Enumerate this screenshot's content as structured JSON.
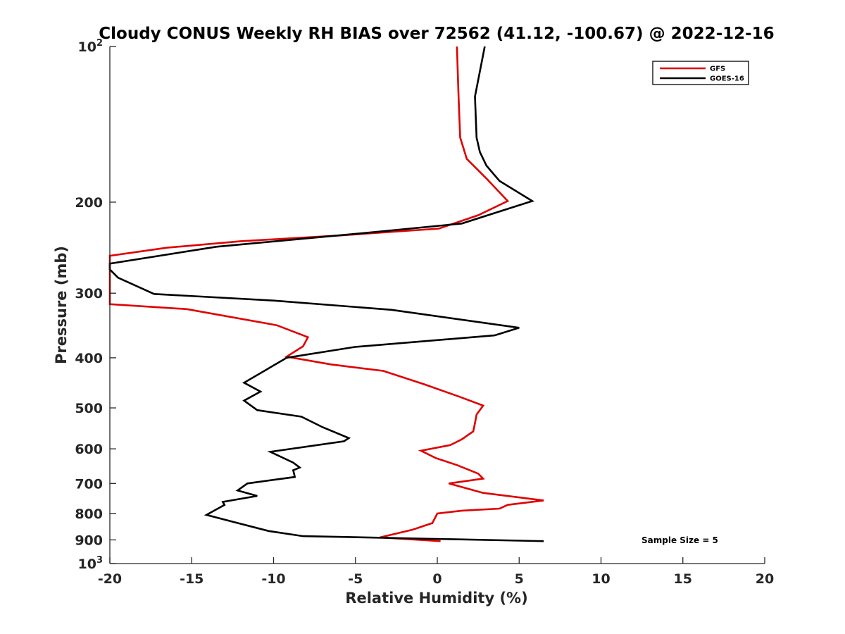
{
  "chart_data": {
    "type": "line",
    "title": "Cloudy CONUS Weekly RH BIAS over 72562 (41.12, -100.67) @ 2022-12-16",
    "xlabel": "Relative Humidity (%)",
    "ylabel": "Pressure (mb)",
    "xlim": [
      -20,
      20
    ],
    "ylim": [
      100,
      1000
    ],
    "yscale": "log",
    "y_reversed": true,
    "x_ticks": [
      -20,
      -15,
      -10,
      -5,
      0,
      5,
      10,
      15,
      20
    ],
    "x_tick_labels": [
      "-20",
      "-15",
      "-10",
      "-5",
      "0",
      "5",
      "10",
      "15",
      "20"
    ],
    "y_ticks": [
      {
        "value": 100,
        "base": "10",
        "exp": "2"
      },
      {
        "value": 200,
        "label": "200"
      },
      {
        "value": 300,
        "label": "300"
      },
      {
        "value": 400,
        "label": "400"
      },
      {
        "value": 500,
        "label": "500"
      },
      {
        "value": 600,
        "label": "600"
      },
      {
        "value": 700,
        "label": "700"
      },
      {
        "value": 800,
        "label": "800"
      },
      {
        "value": 900,
        "label": "900"
      },
      {
        "value": 1000,
        "base": "10",
        "exp": "3"
      }
    ],
    "grid": false,
    "legend_position": "top-right",
    "annotation": "Sample Size = 5",
    "series": [
      {
        "name": "GFS",
        "color": "#e00000",
        "points": [
          [
            1.2,
            100
          ],
          [
            1.3,
            125
          ],
          [
            1.4,
            150
          ],
          [
            1.8,
            165
          ],
          [
            3.0,
            180
          ],
          [
            4.3,
            199
          ],
          [
            2.5,
            212
          ],
          [
            0.1,
            225
          ],
          [
            -6.0,
            232
          ],
          [
            -12.0,
            238
          ],
          [
            -16.5,
            245
          ],
          [
            -20.0,
            254
          ],
          [
            -20.0,
            315
          ],
          [
            -15.3,
            322
          ],
          [
            -9.8,
            346
          ],
          [
            -7.9,
            365
          ],
          [
            -8.2,
            380
          ],
          [
            -9.2,
            398
          ],
          [
            -6.5,
            412
          ],
          [
            -3.3,
            424
          ],
          [
            -0.8,
            450
          ],
          [
            1.3,
            475
          ],
          [
            2.8,
            495
          ],
          [
            2.4,
            515
          ],
          [
            2.3,
            535
          ],
          [
            2.2,
            555
          ],
          [
            1.5,
            575
          ],
          [
            0.8,
            590
          ],
          [
            -1.0,
            605
          ],
          [
            -0.1,
            625
          ],
          [
            1.2,
            645
          ],
          [
            2.5,
            670
          ],
          [
            2.8,
            685
          ],
          [
            0.7,
            700
          ],
          [
            2.8,
            730
          ],
          [
            6.5,
            755
          ],
          [
            4.3,
            770
          ],
          [
            3.8,
            783
          ],
          [
            1.5,
            790
          ],
          [
            0.0,
            800
          ],
          [
            -0.3,
            835
          ],
          [
            -1.5,
            860
          ],
          [
            -3.5,
            890
          ],
          [
            0.2,
            905
          ]
        ]
      },
      {
        "name": "GOES-16",
        "color": "#000000",
        "points": [
          [
            2.9,
            100
          ],
          [
            2.3,
            125
          ],
          [
            2.4,
            150
          ],
          [
            2.6,
            160
          ],
          [
            3.0,
            170
          ],
          [
            3.8,
            182
          ],
          [
            5.8,
            199
          ],
          [
            1.5,
            220
          ],
          [
            -3.5,
            228
          ],
          [
            -13.5,
            244
          ],
          [
            -20.0,
            263
          ],
          [
            -20.0,
            270
          ],
          [
            -19.5,
            280
          ],
          [
            -17.3,
            301
          ],
          [
            -10.0,
            310
          ],
          [
            -2.8,
            323
          ],
          [
            5.0,
            350
          ],
          [
            3.5,
            362
          ],
          [
            -5.0,
            381
          ],
          [
            -9.2,
            400
          ],
          [
            -11.8,
            447
          ],
          [
            -10.8,
            465
          ],
          [
            -11.8,
            484
          ],
          [
            -11.0,
            505
          ],
          [
            -8.3,
            520
          ],
          [
            -7.0,
            545
          ],
          [
            -5.4,
            572
          ],
          [
            -5.7,
            580
          ],
          [
            -10.2,
            608
          ],
          [
            -8.8,
            638
          ],
          [
            -8.4,
            652
          ],
          [
            -8.8,
            660
          ],
          [
            -8.7,
            680
          ],
          [
            -11.6,
            700
          ],
          [
            -12.2,
            722
          ],
          [
            -11.0,
            740
          ],
          [
            -13.1,
            760
          ],
          [
            -13.0,
            770
          ],
          [
            -14.1,
            805
          ],
          [
            -12.5,
            830
          ],
          [
            -10.3,
            865
          ],
          [
            -8.2,
            885
          ],
          [
            6.5,
            905
          ]
        ]
      }
    ]
  }
}
